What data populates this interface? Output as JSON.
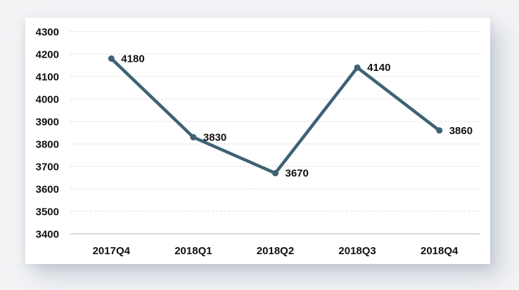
{
  "chart_data": {
    "type": "line",
    "title": "",
    "xlabel": "",
    "ylabel": "",
    "categories": [
      "2017Q4",
      "2018Q1",
      "2018Q2",
      "2018Q3",
      "2018Q4"
    ],
    "values": [
      4180,
      3830,
      3670,
      4140,
      3860
    ],
    "data_labels": [
      "4180",
      "3830",
      "3670",
      "4140",
      "3860"
    ],
    "ylim": [
      3400,
      4300
    ],
    "y_tick_step": 100,
    "y_ticks": [
      "4300",
      "4200",
      "4100",
      "4000",
      "3900",
      "3800",
      "3700",
      "3600",
      "3500",
      "3400"
    ],
    "grid": "horizontal-dashed",
    "legend": "none",
    "colors": {
      "line": "#3d6274",
      "marker": "#3d6274",
      "data_label_text": "#111111",
      "tick_text": "#111111",
      "gridline": "#d9d9d9",
      "axis_line": "#c9cdd1",
      "card_background": "#ffffff",
      "page_background": "#f2f3f5"
    }
  }
}
